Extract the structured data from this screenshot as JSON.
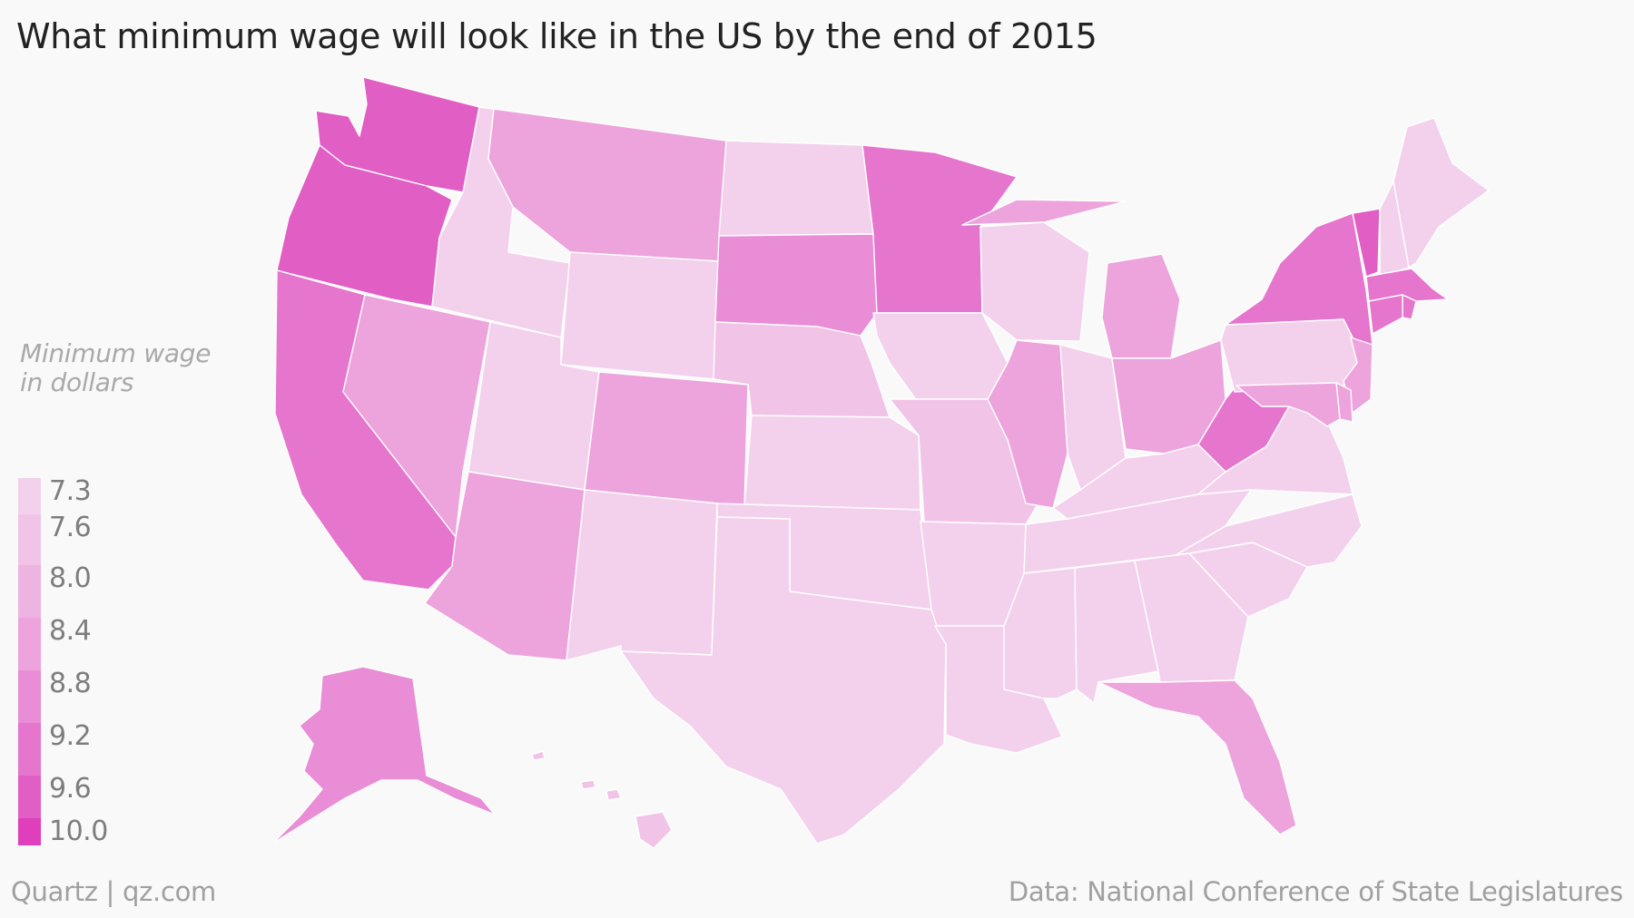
{
  "title": "What minimum wage will look like in the US by the end of 2015",
  "legend": {
    "title_line1": "Minimum wage",
    "title_line2": "in dollars",
    "bins": [
      {
        "label": "7.3",
        "color": "#f3d1ec"
      },
      {
        "label": "7.6",
        "color": "#f1c4e7"
      },
      {
        "label": "8.0",
        "color": "#eeb4e1"
      },
      {
        "label": "8.4",
        "color": "#eda3dc"
      },
      {
        "label": "8.8",
        "color": "#e88dd6"
      },
      {
        "label": "9.2",
        "color": "#e575cd"
      },
      {
        "label": "9.6",
        "color": "#e15ec4"
      },
      {
        "label": "10.0",
        "color": "#e03fbb"
      }
    ]
  },
  "credit": "Quartz | qz.com",
  "source": "Data: National Conference of State Legislatures",
  "states": [
    {
      "code": "WA",
      "wage": 9.47,
      "color": "#e15ec4"
    },
    {
      "code": "OR",
      "wage": 9.25,
      "color": "#e15ec4"
    },
    {
      "code": "CA",
      "wage": 9.0,
      "color": "#e575cd"
    },
    {
      "code": "NV",
      "wage": 8.25,
      "color": "#eda3dc"
    },
    {
      "code": "ID",
      "wage": 7.25,
      "color": "#f3d1ec"
    },
    {
      "code": "MT",
      "wage": 8.05,
      "color": "#eda3dc"
    },
    {
      "code": "WY",
      "wage": 7.25,
      "color": "#f3d1ec"
    },
    {
      "code": "UT",
      "wage": 7.25,
      "color": "#f3d1ec"
    },
    {
      "code": "AZ",
      "wage": 8.05,
      "color": "#eda3dc"
    },
    {
      "code": "CO",
      "wage": 8.23,
      "color": "#eda3dc"
    },
    {
      "code": "NM",
      "wage": 7.5,
      "color": "#f3d1ec"
    },
    {
      "code": "ND",
      "wage": 7.25,
      "color": "#f3d1ec"
    },
    {
      "code": "SD",
      "wage": 8.5,
      "color": "#e88dd6"
    },
    {
      "code": "NE",
      "wage": 8.0,
      "color": "#f1c4e7"
    },
    {
      "code": "KS",
      "wage": 7.25,
      "color": "#f3d1ec"
    },
    {
      "code": "OK",
      "wage": 7.25,
      "color": "#f3d1ec"
    },
    {
      "code": "TX",
      "wage": 7.25,
      "color": "#f3d1ec"
    },
    {
      "code": "MN",
      "wage": 9.0,
      "color": "#e575cd"
    },
    {
      "code": "IA",
      "wage": 7.25,
      "color": "#f3d1ec"
    },
    {
      "code": "MO",
      "wage": 7.65,
      "color": "#f1c4e7"
    },
    {
      "code": "AR",
      "wage": 7.5,
      "color": "#f3d1ec"
    },
    {
      "code": "LA",
      "wage": 7.25,
      "color": "#f3d1ec"
    },
    {
      "code": "WI",
      "wage": 7.25,
      "color": "#f3d1ec"
    },
    {
      "code": "IL",
      "wage": 8.25,
      "color": "#eda3dc"
    },
    {
      "code": "MI",
      "wage": 8.15,
      "color": "#eda3dc"
    },
    {
      "code": "IN",
      "wage": 7.25,
      "color": "#f3d1ec"
    },
    {
      "code": "OH",
      "wage": 8.1,
      "color": "#eda3dc"
    },
    {
      "code": "KY",
      "wage": 7.25,
      "color": "#f3d1ec"
    },
    {
      "code": "TN",
      "wage": 7.25,
      "color": "#f3d1ec"
    },
    {
      "code": "MS",
      "wage": 7.25,
      "color": "#f3d1ec"
    },
    {
      "code": "AL",
      "wage": 7.25,
      "color": "#f3d1ec"
    },
    {
      "code": "GA",
      "wage": 7.25,
      "color": "#f3d1ec"
    },
    {
      "code": "FL",
      "wage": 8.05,
      "color": "#eda3dc"
    },
    {
      "code": "SC",
      "wage": 7.25,
      "color": "#f3d1ec"
    },
    {
      "code": "NC",
      "wage": 7.25,
      "color": "#f3d1ec"
    },
    {
      "code": "VA",
      "wage": 7.25,
      "color": "#f3d1ec"
    },
    {
      "code": "WV",
      "wage": 8.75,
      "color": "#e575cd"
    },
    {
      "code": "PA",
      "wage": 7.25,
      "color": "#f3d1ec"
    },
    {
      "code": "NY",
      "wage": 8.75,
      "color": "#e575cd"
    },
    {
      "code": "VT",
      "wage": 9.15,
      "color": "#e15ec4"
    },
    {
      "code": "NH",
      "wage": 7.25,
      "color": "#f3d1ec"
    },
    {
      "code": "ME",
      "wage": 7.5,
      "color": "#f3d1ec"
    },
    {
      "code": "MA",
      "wage": 9.0,
      "color": "#e575cd"
    },
    {
      "code": "RI",
      "wage": 9.0,
      "color": "#e575cd"
    },
    {
      "code": "CT",
      "wage": 9.15,
      "color": "#e575cd"
    },
    {
      "code": "NJ",
      "wage": 8.38,
      "color": "#eda3dc"
    },
    {
      "code": "DE",
      "wage": 8.25,
      "color": "#eda3dc"
    },
    {
      "code": "MD",
      "wage": 8.25,
      "color": "#eda3dc"
    },
    {
      "code": "AK",
      "wage": 8.75,
      "color": "#e88dd6"
    },
    {
      "code": "HI",
      "wage": 7.75,
      "color": "#f1c4e7"
    }
  ]
}
